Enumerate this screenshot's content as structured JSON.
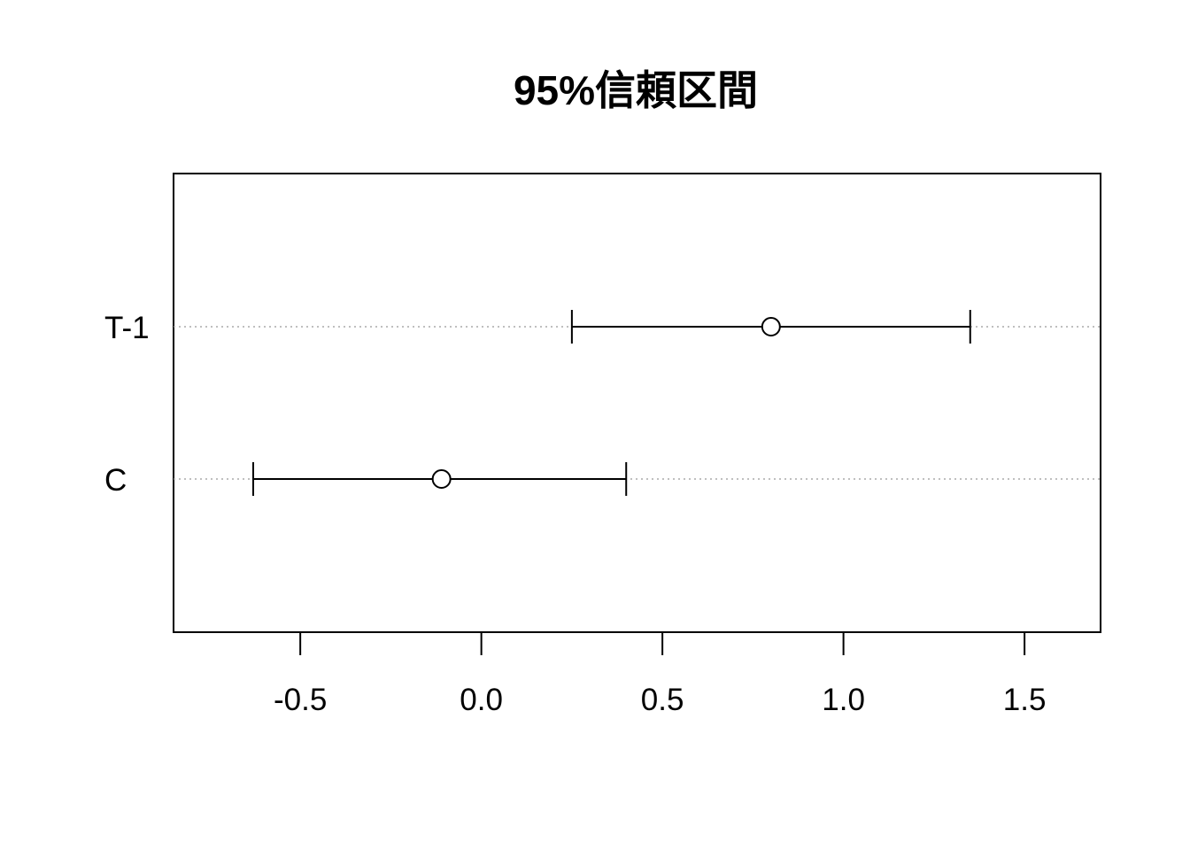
{
  "chart_data": {
    "type": "scatter",
    "title": "95%信頼区間",
    "xlabel": "",
    "ylabel": "",
    "xlim": [
      -0.85,
      1.71
    ],
    "x_ticks": [
      -0.5,
      0.0,
      0.5,
      1.0,
      1.5
    ],
    "x_tick_labels": [
      "-0.5",
      "0.0",
      "0.5",
      "1.0",
      "1.5"
    ],
    "categories": [
      "T-1",
      "C"
    ],
    "points": [
      {
        "category": "T-1",
        "estimate": 0.8,
        "lower": 0.25,
        "upper": 1.35
      },
      {
        "category": "C",
        "estimate": -0.11,
        "lower": -0.63,
        "upper": 0.4
      }
    ],
    "grid": "dotted horizontal guide lines at each category",
    "colors": {
      "line": "#000000",
      "guide": "#aaaaaa",
      "background": "#ffffff"
    }
  }
}
